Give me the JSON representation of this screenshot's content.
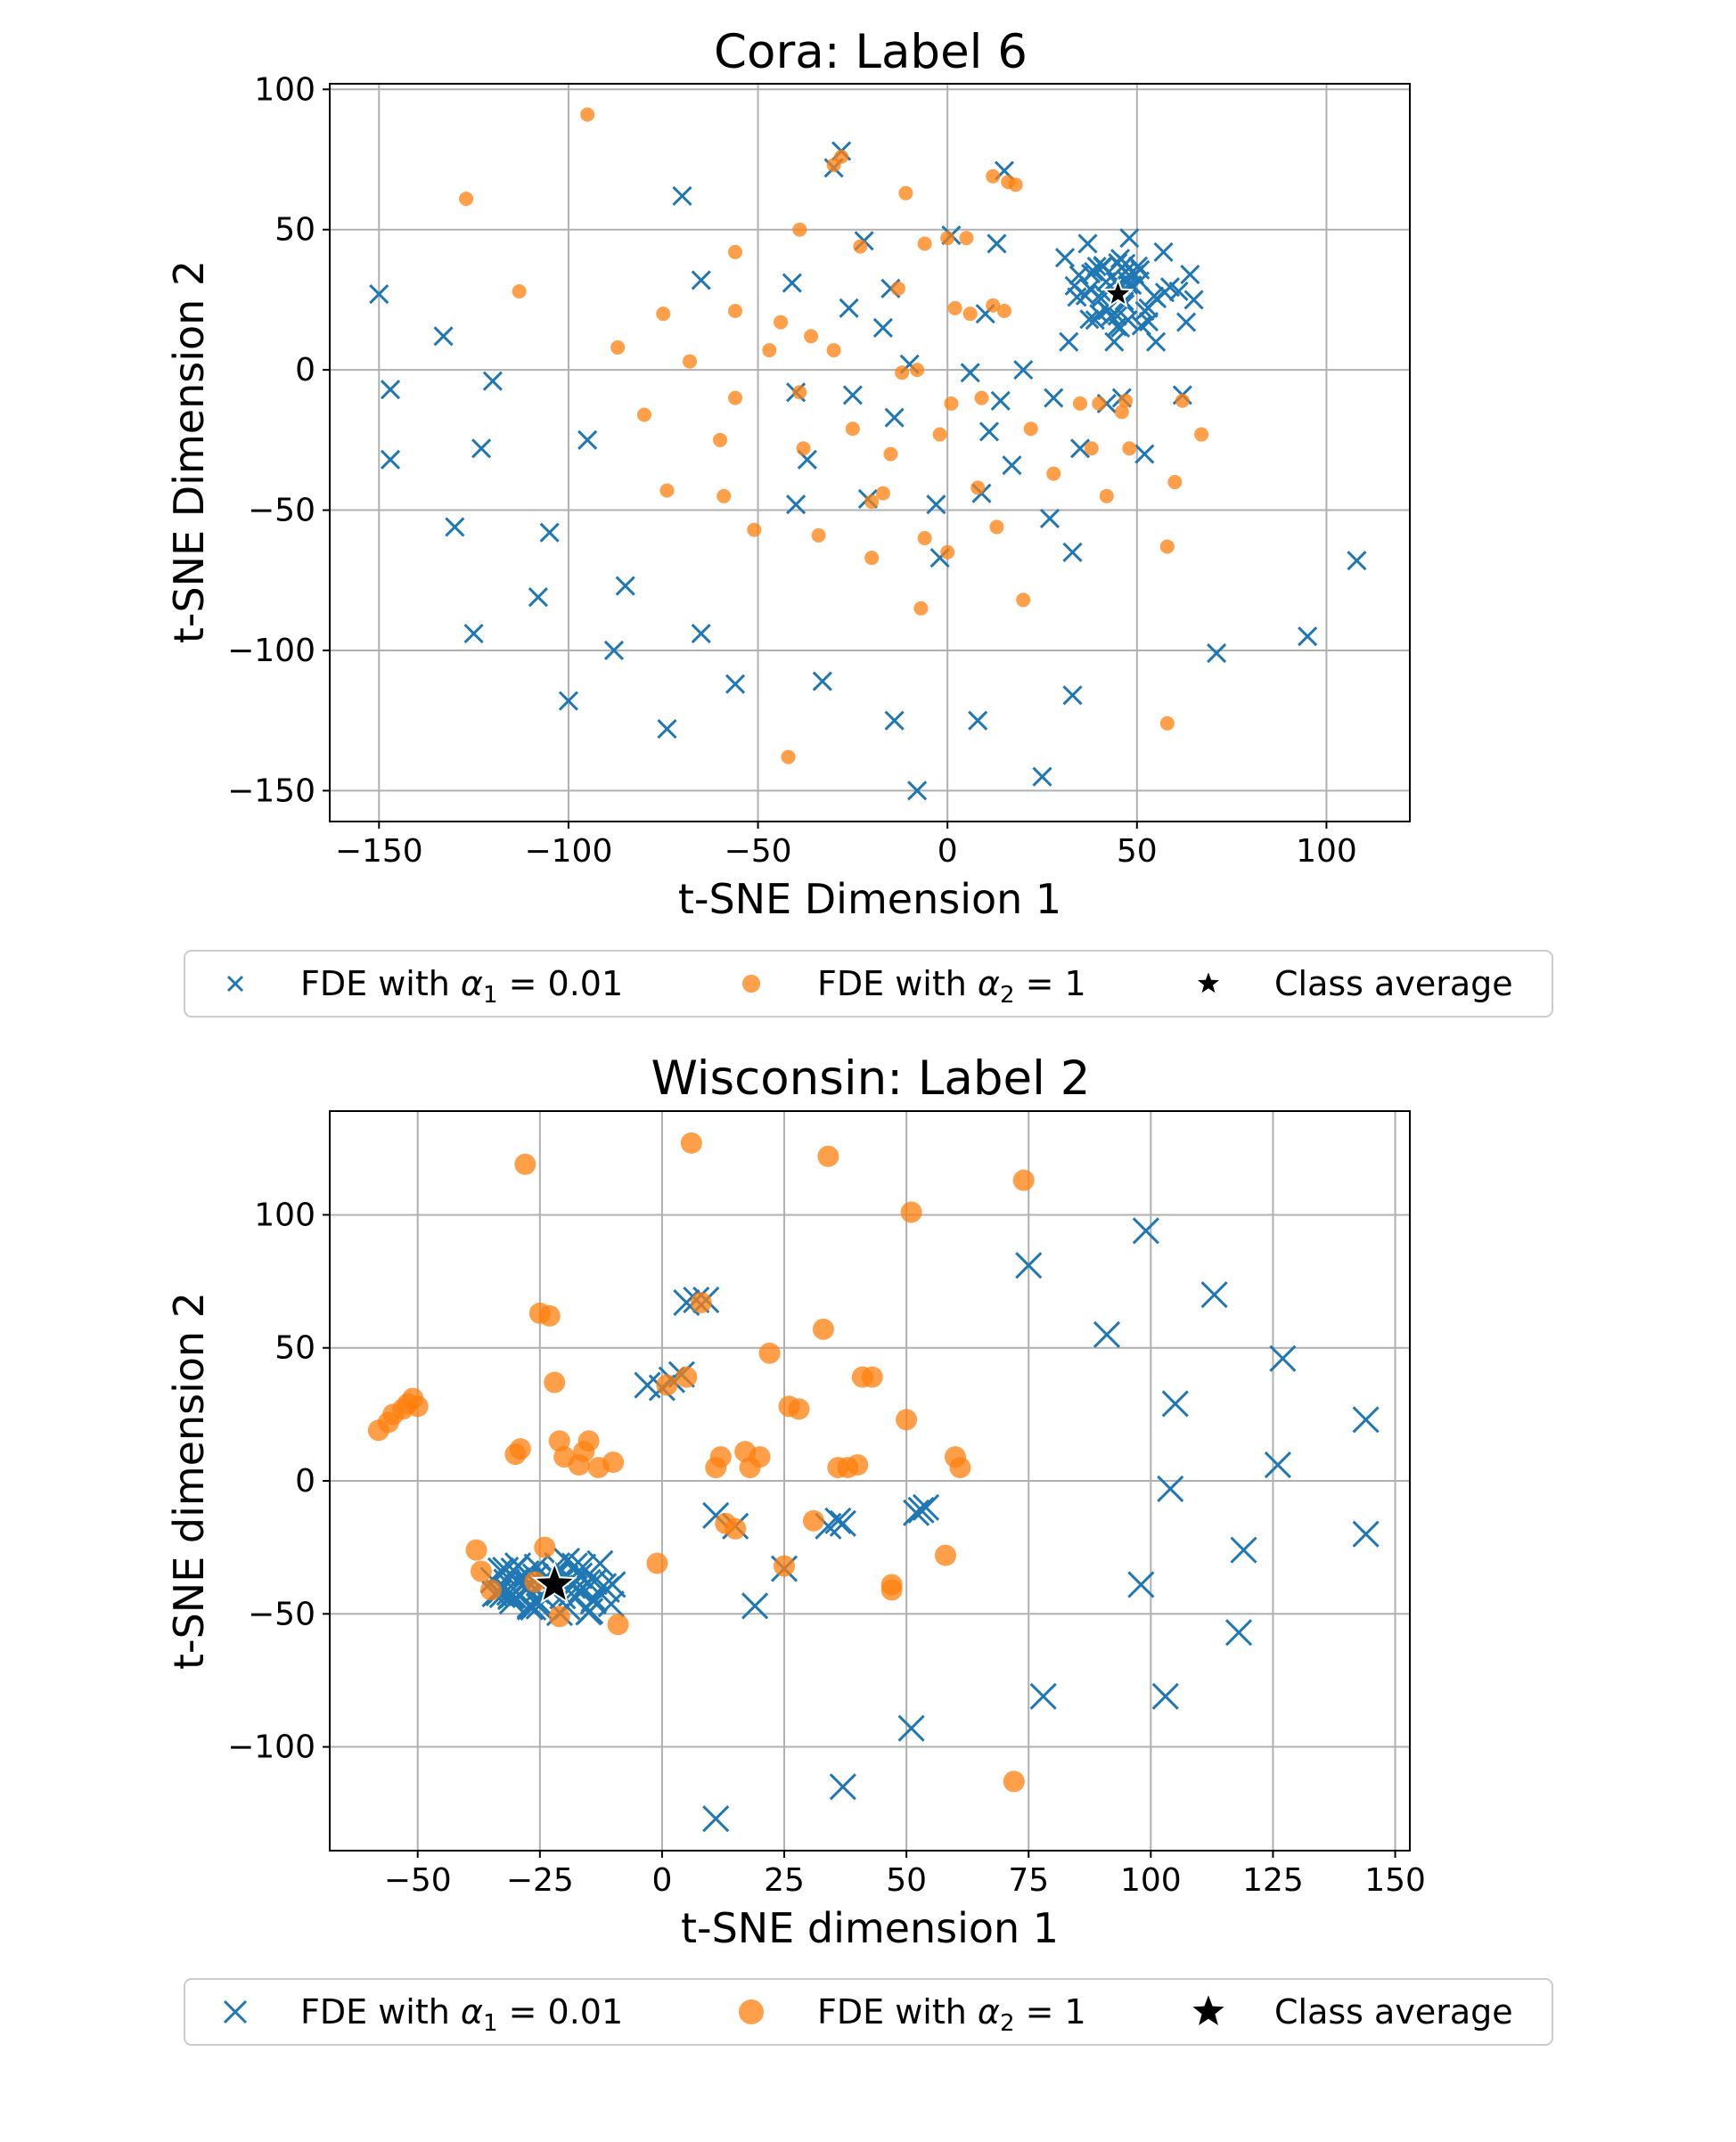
{
  "chart_data": [
    {
      "type": "scatter",
      "title": "Cora: Label 6",
      "xlabel": "t-SNE Dimension 1",
      "ylabel": "t-SNE Dimension 2",
      "xlim": [
        -163,
        122
      ],
      "ylim": [
        -161,
        102
      ],
      "xticks": [
        -150,
        -100,
        -50,
        0,
        50,
        100
      ],
      "yticks": [
        100,
        50,
        0,
        -50,
        -100,
        -150
      ],
      "xtick_labels": [
        "−150",
        "−100",
        "−50",
        "0",
        "50",
        "100"
      ],
      "ytick_labels": [
        "100",
        "50",
        "0",
        "−50",
        "−100",
        "−150"
      ],
      "grid": true,
      "legend_position": "below",
      "series": [
        {
          "name": "FDE with α₁ = 0.01",
          "marker": "x",
          "color": "#1f77b4",
          "points": [
            [
              -150,
              27
            ],
            [
              -147,
              -7
            ],
            [
              -147,
              -32
            ],
            [
              -133,
              12
            ],
            [
              -130,
              -56
            ],
            [
              -125,
              -94
            ],
            [
              -123,
              -28
            ],
            [
              -120,
              -4
            ],
            [
              -108,
              -81
            ],
            [
              -105,
              -58
            ],
            [
              -100,
              -118
            ],
            [
              -95,
              -25
            ],
            [
              -88,
              -100
            ],
            [
              -85,
              -77
            ],
            [
              -74,
              -128
            ],
            [
              -70,
              62
            ],
            [
              -65,
              32
            ],
            [
              -65,
              -94
            ],
            [
              -56,
              -112
            ],
            [
              -41,
              31
            ],
            [
              -40,
              -48
            ],
            [
              -40,
              -8
            ],
            [
              -37,
              -32
            ],
            [
              -33,
              -111
            ],
            [
              -30,
              72
            ],
            [
              -28,
              78
            ],
            [
              -26,
              22
            ],
            [
              -25,
              -9
            ],
            [
              -22,
              46
            ],
            [
              -21,
              -46
            ],
            [
              -17,
              15
            ],
            [
              -15,
              29
            ],
            [
              -14,
              -17
            ],
            [
              -14,
              -125
            ],
            [
              -10,
              2
            ],
            [
              -8,
              -150
            ],
            [
              -3,
              -48
            ],
            [
              -2,
              -67
            ],
            [
              1,
              48
            ],
            [
              6,
              -1
            ],
            [
              8,
              -125
            ],
            [
              9,
              -44
            ],
            [
              10,
              20
            ],
            [
              11,
              -22
            ],
            [
              13,
              45
            ],
            [
              14,
              -11
            ],
            [
              15,
              71
            ],
            [
              17,
              -34
            ],
            [
              20,
              0
            ],
            [
              25,
              -145
            ],
            [
              27,
              -53
            ],
            [
              28,
              -10
            ],
            [
              31,
              40
            ],
            [
              32,
              10
            ],
            [
              33,
              -116
            ],
            [
              33,
              -65
            ],
            [
              35,
              -28
            ],
            [
              37,
              45
            ],
            [
              40,
              20
            ],
            [
              42,
              -12
            ],
            [
              44,
              10
            ],
            [
              46,
              -10
            ],
            [
              47,
              35
            ],
            [
              48,
              47
            ],
            [
              52,
              -30
            ],
            [
              53,
              22
            ],
            [
              55,
              10
            ],
            [
              57,
              42
            ],
            [
              61,
              28
            ],
            [
              62,
              -9
            ],
            [
              63,
              17
            ],
            [
              64,
              34
            ],
            [
              65,
              25
            ],
            [
              71,
              -101
            ],
            [
              95,
              -95
            ],
            [
              108,
              -68
            ]
          ]
        },
        {
          "name": "FDE with α₂ = 1",
          "marker": "o",
          "color": "#ff7f0e",
          "points": [
            [
              -127,
              61
            ],
            [
              -113,
              28
            ],
            [
              -95,
              91
            ],
            [
              -87,
              8
            ],
            [
              -80,
              -16
            ],
            [
              -75,
              20
            ],
            [
              -74,
              -43
            ],
            [
              -68,
              3
            ],
            [
              -60,
              -25
            ],
            [
              -59,
              -45
            ],
            [
              -56,
              42
            ],
            [
              -56,
              21
            ],
            [
              -56,
              -10
            ],
            [
              -51,
              -57
            ],
            [
              -47,
              7
            ],
            [
              -44,
              17
            ],
            [
              -42,
              -138
            ],
            [
              -39,
              50
            ],
            [
              -39,
              -8
            ],
            [
              -38,
              -28
            ],
            [
              -36,
              12
            ],
            [
              -34,
              -59
            ],
            [
              -30,
              7
            ],
            [
              -30,
              73
            ],
            [
              -28,
              76
            ],
            [
              -25,
              -21
            ],
            [
              -23,
              44
            ],
            [
              -20,
              -67
            ],
            [
              -20,
              -47
            ],
            [
              -17,
              -44
            ],
            [
              -15,
              -30
            ],
            [
              -13,
              29
            ],
            [
              -12,
              -1
            ],
            [
              -11,
              63
            ],
            [
              -8,
              0
            ],
            [
              -7,
              -85
            ],
            [
              -6,
              45
            ],
            [
              -6,
              -60
            ],
            [
              -2,
              -23
            ],
            [
              0,
              47
            ],
            [
              0,
              -65
            ],
            [
              1,
              -12
            ],
            [
              2,
              22
            ],
            [
              5,
              47
            ],
            [
              6,
              20
            ],
            [
              8,
              -42
            ],
            [
              9,
              -10
            ],
            [
              12,
              23
            ],
            [
              12,
              69
            ],
            [
              13,
              -56
            ],
            [
              15,
              21
            ],
            [
              16,
              67
            ],
            [
              18,
              66
            ],
            [
              20,
              -82
            ],
            [
              22,
              -21
            ],
            [
              28,
              -37
            ],
            [
              35,
              -12
            ],
            [
              38,
              -28
            ],
            [
              40,
              -12
            ],
            [
              42,
              -45
            ],
            [
              46,
              -15
            ],
            [
              47,
              -11
            ],
            [
              48,
              -28
            ],
            [
              58,
              -63
            ],
            [
              58,
              -126
            ],
            [
              60,
              -40
            ],
            [
              62,
              -11
            ],
            [
              67,
              -23
            ]
          ]
        },
        {
          "name": "Class average",
          "marker": "star",
          "color": "#000000",
          "points": [
            [
              45,
              27
            ]
          ]
        }
      ],
      "cluster": {
        "series": 0,
        "center": [
          45,
          27
        ],
        "count": 45,
        "spread": [
          14,
          14
        ]
      }
    },
    {
      "type": "scatter",
      "title": "Wisconsin: Label 2",
      "xlabel": "t-SNE dimension 1",
      "ylabel": "t-SNE dimension 2",
      "xlim": [
        -68,
        153
      ],
      "ylim": [
        -139,
        139
      ],
      "xticks": [
        -50,
        -25,
        0,
        25,
        50,
        75,
        100,
        125,
        150
      ],
      "yticks": [
        100,
        50,
        0,
        -50,
        -100
      ],
      "xtick_labels": [
        "−50",
        "−25",
        "0",
        "25",
        "50",
        "75",
        "100",
        "125",
        "150"
      ],
      "ytick_labels": [
        "100",
        "50",
        "0",
        "−50",
        "−100"
      ],
      "grid": true,
      "legend_position": "below",
      "series": [
        {
          "name": "FDE with α₁ = 0.01",
          "marker": "x",
          "color": "#1f77b4",
          "points": [
            [
              -3,
              36
            ],
            [
              0,
              35
            ],
            [
              2,
              38
            ],
            [
              4,
              40
            ],
            [
              5,
              67
            ],
            [
              7,
              68
            ],
            [
              9,
              68
            ],
            [
              11,
              -13
            ],
            [
              11,
              -127
            ],
            [
              15,
              -17
            ],
            [
              19,
              -47
            ],
            [
              25,
              -33
            ],
            [
              34,
              -17
            ],
            [
              36,
              -15
            ],
            [
              37,
              -16
            ],
            [
              37,
              -115
            ],
            [
              51,
              -93
            ],
            [
              52,
              -12
            ],
            [
              53,
              -11
            ],
            [
              54,
              -10
            ],
            [
              75,
              81
            ],
            [
              78,
              -81
            ],
            [
              91,
              55
            ],
            [
              98,
              -39
            ],
            [
              99,
              94
            ],
            [
              103,
              -81
            ],
            [
              104,
              -3
            ],
            [
              105,
              29
            ],
            [
              113,
              70
            ],
            [
              118,
              -57
            ],
            [
              119,
              -26
            ],
            [
              126,
              6
            ],
            [
              127,
              46
            ],
            [
              144,
              23
            ],
            [
              144,
              -20
            ]
          ]
        },
        {
          "name": "FDE with α₂ = 1",
          "marker": "o",
          "color": "#ff7f0e",
          "points": [
            [
              -58,
              19
            ],
            [
              -56,
              22
            ],
            [
              -55,
              25
            ],
            [
              -53,
              27
            ],
            [
              -52,
              29
            ],
            [
              -51,
              31
            ],
            [
              -50,
              28
            ],
            [
              -38,
              -26
            ],
            [
              -37,
              -34
            ],
            [
              -35,
              -41
            ],
            [
              -30,
              10
            ],
            [
              -29,
              12
            ],
            [
              -28,
              119
            ],
            [
              -26,
              -38
            ],
            [
              -25,
              63
            ],
            [
              -24,
              -25
            ],
            [
              -23,
              62
            ],
            [
              -22,
              37
            ],
            [
              -21,
              -51
            ],
            [
              -21,
              15
            ],
            [
              -20,
              9
            ],
            [
              -17,
              6
            ],
            [
              -16,
              11
            ],
            [
              -15,
              15
            ],
            [
              -13,
              5
            ],
            [
              -10,
              7
            ],
            [
              -9,
              -54
            ],
            [
              -1,
              -31
            ],
            [
              1,
              36
            ],
            [
              5,
              39
            ],
            [
              6,
              127
            ],
            [
              8,
              67
            ],
            [
              11,
              5
            ],
            [
              12,
              9
            ],
            [
              13,
              -16
            ],
            [
              15,
              -18
            ],
            [
              17,
              11
            ],
            [
              18,
              5
            ],
            [
              20,
              9
            ],
            [
              22,
              48
            ],
            [
              25,
              -32
            ],
            [
              26,
              28
            ],
            [
              28,
              27
            ],
            [
              31,
              -15
            ],
            [
              33,
              57
            ],
            [
              34,
              122
            ],
            [
              36,
              5
            ],
            [
              38,
              5
            ],
            [
              40,
              6
            ],
            [
              41,
              39
            ],
            [
              43,
              39
            ],
            [
              47,
              -39
            ],
            [
              47,
              -41
            ],
            [
              50,
              23
            ],
            [
              51,
              101
            ],
            [
              58,
              -28
            ],
            [
              60,
              9
            ],
            [
              61,
              5
            ],
            [
              72,
              -113
            ],
            [
              74,
              113
            ]
          ]
        },
        {
          "name": "Class average",
          "marker": "star",
          "color": "#000000",
          "points": [
            [
              -22,
              -39
            ]
          ]
        }
      ],
      "cluster": {
        "series": 0,
        "center": [
          -22,
          -40
        ],
        "count": 55,
        "spread": [
          15,
          12
        ]
      }
    }
  ],
  "legend": {
    "items": [
      {
        "prefix": "FDE with ",
        "var": "α",
        "sub": "1",
        "suffix": " = 0.01"
      },
      {
        "prefix": "FDE with ",
        "var": "α",
        "sub": "2",
        "suffix": " = 1"
      },
      {
        "prefix": "",
        "var": "",
        "sub": "",
        "suffix": "Class average"
      }
    ]
  },
  "colors": {
    "series1": "#1f77b4",
    "series2": "#ff7f0e",
    "average": "#000000",
    "grid": "#b0b0b0"
  }
}
